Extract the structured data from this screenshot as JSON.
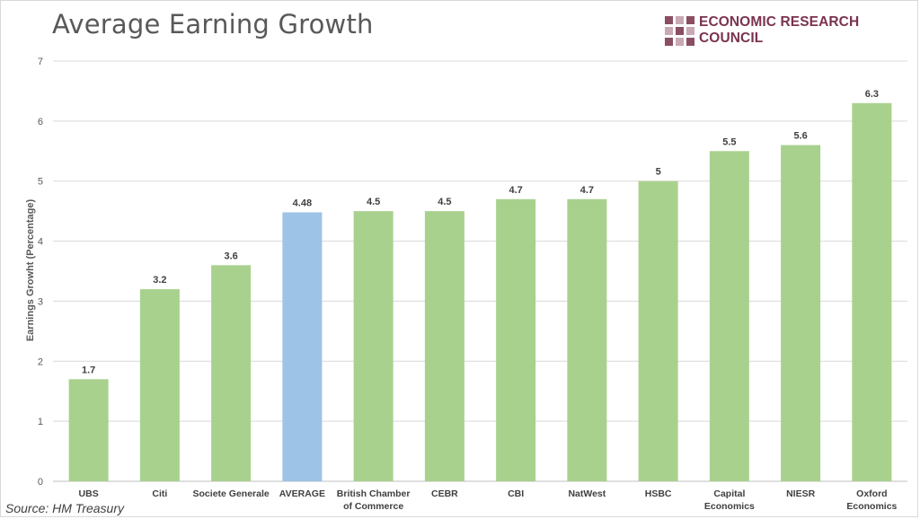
{
  "header": {
    "title": "Average Earning Growth",
    "logo_text": "ECONOMIC RESEARCH COUNCIL"
  },
  "footer": {
    "source": "Source: HM Treasury"
  },
  "colors": {
    "bar": "#a9d18e",
    "highlight_bar": "#9dc3e6",
    "grid": "#d9d9d9",
    "logo": "#7a3350"
  },
  "chart_data": {
    "type": "bar",
    "title": "Average Earning Growth",
    "xlabel": "",
    "ylabel": "Earnings Growht (Percentage)",
    "ylim": [
      0,
      7
    ],
    "yticks": [
      0,
      1,
      2,
      3,
      4,
      5,
      6,
      7
    ],
    "grid": true,
    "categories": [
      [
        "UBS"
      ],
      [
        "Citi"
      ],
      [
        "Societe Generale"
      ],
      [
        "AVERAGE"
      ],
      [
        "British Chamber",
        "of Commerce"
      ],
      [
        "CEBR"
      ],
      [
        "CBI"
      ],
      [
        "NatWest"
      ],
      [
        "HSBC"
      ],
      [
        "Capital",
        "Economics"
      ],
      [
        "NIESR"
      ],
      [
        "Oxford",
        "Economics"
      ]
    ],
    "values": [
      1.7,
      3.2,
      3.6,
      4.48,
      4.5,
      4.5,
      4.7,
      4.7,
      5,
      5.5,
      5.6,
      6.3
    ],
    "highlight_index": 3,
    "data_labels": [
      "1.7",
      "3.2",
      "3.6",
      "4.48",
      "4.5",
      "4.5",
      "4.7",
      "4.7",
      "5",
      "5.5",
      "5.6",
      "6.3"
    ]
  }
}
